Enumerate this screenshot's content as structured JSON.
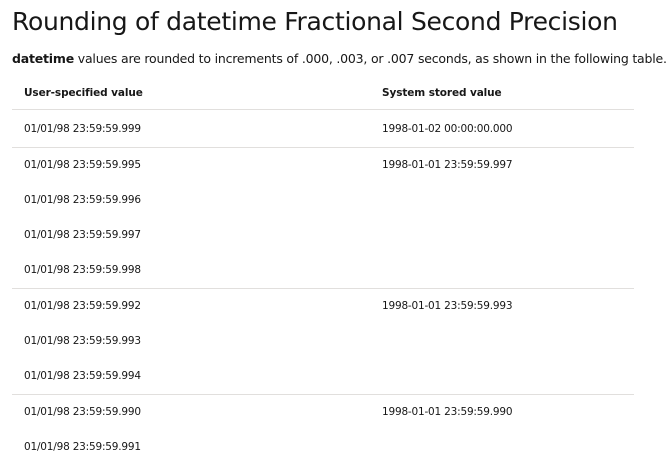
{
  "title": "Rounding of datetime Fractional Second Precision",
  "intro": {
    "keyword": "datetime",
    "rest": " values are rounded to increments of .000, .003, or .007 seconds, as shown in the following table."
  },
  "table": {
    "headers": [
      "User-specified value",
      "System stored value"
    ],
    "groups": [
      {
        "user_values": [
          "01/01/98 23:59:59.999"
        ],
        "stored": "1998-01-02 00:00:00.000"
      },
      {
        "user_values": [
          "01/01/98 23:59:59.995",
          "01/01/98 23:59:59.996",
          "01/01/98 23:59:59.997",
          "01/01/98 23:59:59.998"
        ],
        "stored": "1998-01-01 23:59:59.997"
      },
      {
        "user_values": [
          "01/01/98 23:59:59.992",
          "01/01/98 23:59:59.993",
          "01/01/98 23:59:59.994"
        ],
        "stored": "1998-01-01 23:59:59.993"
      },
      {
        "user_values": [
          "01/01/98 23:59:59.990",
          "01/01/98 23:59:59.991"
        ],
        "stored": "1998-01-01 23:59:59.990"
      }
    ]
  }
}
